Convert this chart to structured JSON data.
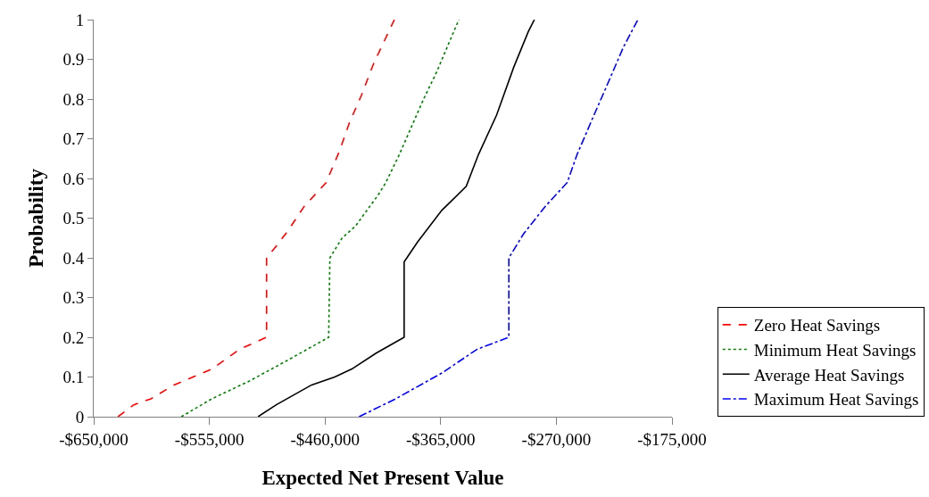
{
  "chart_data": {
    "type": "line",
    "xlabel": "Expected Net Present Value",
    "ylabel": "Probability",
    "xlim": [
      -650000,
      -175000
    ],
    "xticks": [
      {
        "value": -650000,
        "label": "-$650,000"
      },
      {
        "value": -555000,
        "label": "-$555,000"
      },
      {
        "value": -460000,
        "label": "-$460,000"
      },
      {
        "value": -365000,
        "label": "-$365,000"
      },
      {
        "value": -270000,
        "label": "-$270,000"
      },
      {
        "value": -175000,
        "label": "-$175,000"
      }
    ],
    "ylim": [
      0,
      1
    ],
    "yticks": [
      0,
      0.1,
      0.2,
      0.3,
      0.4,
      0.5,
      0.6,
      0.7,
      0.8,
      0.9,
      1
    ],
    "legend": "bottom right",
    "marker": "none",
    "series": [
      {
        "name": "Zero Heat Savings",
        "color": "#ff0000",
        "line_style": "dashed",
        "x": [
          -630000,
          -617000,
          -603000,
          -584000,
          -553000,
          -530000,
          -508000,
          -508000,
          -500000,
          -490000,
          -477000,
          -459000,
          -448000,
          -440000,
          -430000,
          -420000,
          -403000
        ],
        "values": [
          0,
          0.03,
          0.045,
          0.08,
          0.12,
          0.17,
          0.2,
          0.4,
          0.43,
          0.47,
          0.53,
          0.59,
          0.67,
          0.74,
          0.81,
          0.89,
          1
        ]
      },
      {
        "name": "Minimum Heat Savings",
        "color": "#008000",
        "line_style": "dotted",
        "x": [
          -578000,
          -553000,
          -522000,
          -492000,
          -457000,
          -456000,
          -446000,
          -435000,
          -416000,
          -410000,
          -399000,
          -389000,
          -379000,
          -368000,
          -357000,
          -350000
        ],
        "values": [
          0,
          0.045,
          0.09,
          0.14,
          0.2,
          0.4,
          0.45,
          0.48,
          0.56,
          0.59,
          0.66,
          0.73,
          0.8,
          0.87,
          0.95,
          1
        ]
      },
      {
        "name": "Average Heat Savings",
        "color": "#000000",
        "line_style": "solid",
        "x": [
          -515000,
          -500000,
          -471000,
          -452000,
          -438000,
          -418000,
          -395000,
          -395000,
          -384000,
          -364000,
          -344000,
          -334000,
          -319000,
          -305000,
          -293000,
          -288000
        ],
        "values": [
          0,
          0.03,
          0.08,
          0.1,
          0.12,
          0.16,
          0.2,
          0.39,
          0.44,
          0.52,
          0.58,
          0.66,
          0.76,
          0.88,
          0.97,
          1
        ]
      },
      {
        "name": "Maximum Heat Savings",
        "color": "#0000ff",
        "line_style": "dashdot",
        "x": [
          -432000,
          -402000,
          -364000,
          -335000,
          -309000,
          -309000,
          -297000,
          -279000,
          -261000,
          -253000,
          -239000,
          -229000,
          -215000,
          -203000
        ],
        "values": [
          0,
          0.045,
          0.11,
          0.17,
          0.2,
          0.4,
          0.46,
          0.53,
          0.59,
          0.66,
          0.76,
          0.83,
          0.93,
          1
        ]
      }
    ]
  }
}
